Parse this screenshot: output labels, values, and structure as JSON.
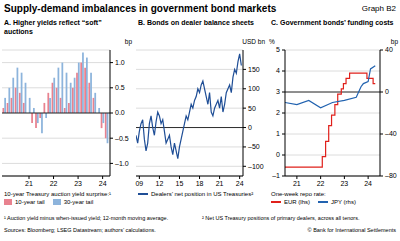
{
  "title": "Supply-demand imbalances in government bond markets",
  "graph_label": "Graph B2",
  "footnotes": [
    "¹ Auction yield minus when-issued yield; 12-month moving average.",
    "² Net US Treasury positions of primary dealers, across all tenors."
  ],
  "source": "Sources: Bloomberg; LSEG Datastream; authors’ calculations.",
  "copyright": "© Bank for International Settlements",
  "chart_data": [
    {
      "type": "bar",
      "title": "A. Higher yields reflect “soft” auctions",
      "ylabel": "bp",
      "legend_title": "10-year Treasury auction yield surprise:¹",
      "x": [
        2020.5,
        2020.67,
        2020.83,
        2021,
        2021.17,
        2021.33,
        2021.5,
        2021.67,
        2021.83,
        2022,
        2022.17,
        2022.33,
        2022.5,
        2022.67,
        2022.83,
        2023,
        2023.17,
        2023.33,
        2023.5,
        2023.67,
        2023.83,
        2024,
        2024.17,
        2024.33,
        2024.5,
        2024.67
      ],
      "series": [
        {
          "name": "10-year tail",
          "color": "#e8828f",
          "values": [
            0.1,
            0.2,
            0.3,
            0.5,
            0.4,
            0.2,
            0,
            -0.2,
            -0.3,
            -0.1,
            0.2,
            0.4,
            0.6,
            0.5,
            0.3,
            0.1,
            0.2,
            0.5,
            0.8,
            1.0,
            0.9,
            0.6,
            0.3,
            0,
            -0.3,
            -0.5
          ]
        },
        {
          "name": "30-year tail",
          "color": "#8db4dc",
          "values": [
            0.3,
            0.5,
            0.7,
            0.9,
            0.8,
            0.6,
            0.3,
            0.1,
            -0.2,
            -0.4,
            -0.1,
            0.3,
            0.7,
            0.9,
            1.0,
            0.8,
            0.6,
            0.7,
            1.0,
            1.2,
            1.1,
            0.8,
            0.4,
            0.1,
            -0.2,
            -0.6
          ]
        }
      ],
      "xlim": [
        2020.4,
        2024.8
      ],
      "xticks": [
        {
          "value": 2021.5,
          "label": "21"
        },
        {
          "value": 2022.5,
          "label": "22"
        },
        {
          "value": 2023.5,
          "label": "23"
        },
        {
          "value": 2024.5,
          "label": "24"
        }
      ],
      "ylim": [
        -1.25,
        1.25
      ],
      "yticks": [
        {
          "value": -1,
          "label": "–1.0"
        },
        {
          "value": -0.5,
          "label": "–0.5"
        },
        {
          "value": 0,
          "label": "0.0"
        },
        {
          "value": 0.5,
          "label": "0.5"
        },
        {
          "value": 1,
          "label": "1.0"
        }
      ],
      "grid": true
    },
    {
      "type": "line",
      "title": "B. Bonds on dealer balance sheets",
      "ylabel": "USD bn",
      "x": [
        2009,
        2009.25,
        2009.5,
        2009.75,
        2010,
        2010.25,
        2010.5,
        2010.75,
        2011,
        2011.25,
        2011.5,
        2011.75,
        2012,
        2012.25,
        2012.5,
        2012.75,
        2013,
        2013.25,
        2013.5,
        2013.75,
        2014,
        2014.25,
        2014.5,
        2014.75,
        2015,
        2015.25,
        2015.5,
        2015.75,
        2016,
        2016.25,
        2016.5,
        2016.75,
        2017,
        2017.25,
        2017.5,
        2017.75,
        2018,
        2018.25,
        2018.5,
        2018.75,
        2019,
        2019.25,
        2019.5,
        2019.75,
        2020,
        2020.25,
        2020.5,
        2020.75,
        2021,
        2021.25,
        2021.5,
        2021.75,
        2022,
        2022.25,
        2022.5,
        2022.75,
        2023,
        2023.25,
        2023.5,
        2023.75,
        2024,
        2024.25,
        2024.5,
        2024.75
      ],
      "series": [
        {
          "name": "Dealers’ net position in US Treasuries²",
          "color": "#1f4e96",
          "values": [
            -20,
            -40,
            -10,
            10,
            20,
            -30,
            -60,
            -40,
            10,
            30,
            0,
            -20,
            15,
            40,
            30,
            10,
            20,
            -10,
            -40,
            -30,
            -20,
            -50,
            -70,
            -40,
            -60,
            -80,
            -50,
            -30,
            -10,
            10,
            30,
            20,
            40,
            60,
            50,
            70,
            80,
            100,
            90,
            110,
            120,
            100,
            80,
            60,
            90,
            40,
            30,
            50,
            60,
            70,
            50,
            80,
            40,
            60,
            90,
            100,
            110,
            90,
            130,
            150,
            140,
            170,
            190,
            160
          ]
        }
      ],
      "xlim": [
        2009,
        2025
      ],
      "xticks": [
        {
          "value": 2009.5,
          "label": "09"
        },
        {
          "value": 2012.5,
          "label": "12"
        },
        {
          "value": 2015.5,
          "label": "15"
        },
        {
          "value": 2018.5,
          "label": "18"
        },
        {
          "value": 2021.5,
          "label": "21"
        },
        {
          "value": 2024.5,
          "label": "24"
        }
      ],
      "ylim": [
        -125,
        200
      ],
      "yticks": [
        {
          "value": -100,
          "label": "–100"
        },
        {
          "value": -50,
          "label": "–50"
        },
        0,
        50,
        100,
        150
      ],
      "grid": true
    },
    {
      "type": "line",
      "title": "C. Government bonds’ funding costs",
      "ylabel": "%",
      "y2label": "bp",
      "legend_title": "One-week repo rate:",
      "series": [
        {
          "name": "EUR (lhs)",
          "color": "#e0201b",
          "line_style": "step",
          "x": [
            2021,
            2022.5,
            2022.57,
            2022.71,
            2022.84,
            2022.96,
            2023.1,
            2023.22,
            2023.37,
            2023.46,
            2023.57,
            2023.72,
            2024.45,
            2024.71,
            2024.8
          ],
          "values": [
            -0.58,
            -0.58,
            -0.08,
            0.65,
            1.4,
            1.9,
            2.4,
            2.9,
            3.15,
            3.4,
            3.65,
            3.9,
            3.65,
            3.4,
            3.4
          ]
        },
        {
          "name": "JPY (rhs)",
          "color": "#2263b0",
          "axis": "y2",
          "x": [
            2021,
            2021.5,
            2022,
            2022.5,
            2023,
            2023.5,
            2024,
            2024.2,
            2024.3,
            2024.5,
            2024.6,
            2024.8
          ],
          "values": [
            -10,
            -12,
            -8,
            -15,
            -10,
            -8,
            -5,
            5,
            8,
            10,
            22,
            25
          ]
        }
      ],
      "xlim": [
        2021,
        2025
      ],
      "xticks": [
        {
          "value": 2021.5,
          "label": "21"
        },
        {
          "value": 2022.5,
          "label": "22"
        },
        {
          "value": 2023.5,
          "label": "23"
        },
        {
          "value": 2024.5,
          "label": "24"
        }
      ],
      "ylim": [
        -1,
        5
      ],
      "yticks": [
        {
          "value": -1,
          "label": "–1"
        },
        0,
        1,
        2,
        3,
        4,
        5
      ],
      "y2lim": [
        -80,
        40
      ],
      "y2ticks": [
        {
          "value": -80,
          "label": "–80"
        },
        {
          "value": -40,
          "label": "–40"
        },
        0,
        40
      ],
      "grid": true
    }
  ]
}
